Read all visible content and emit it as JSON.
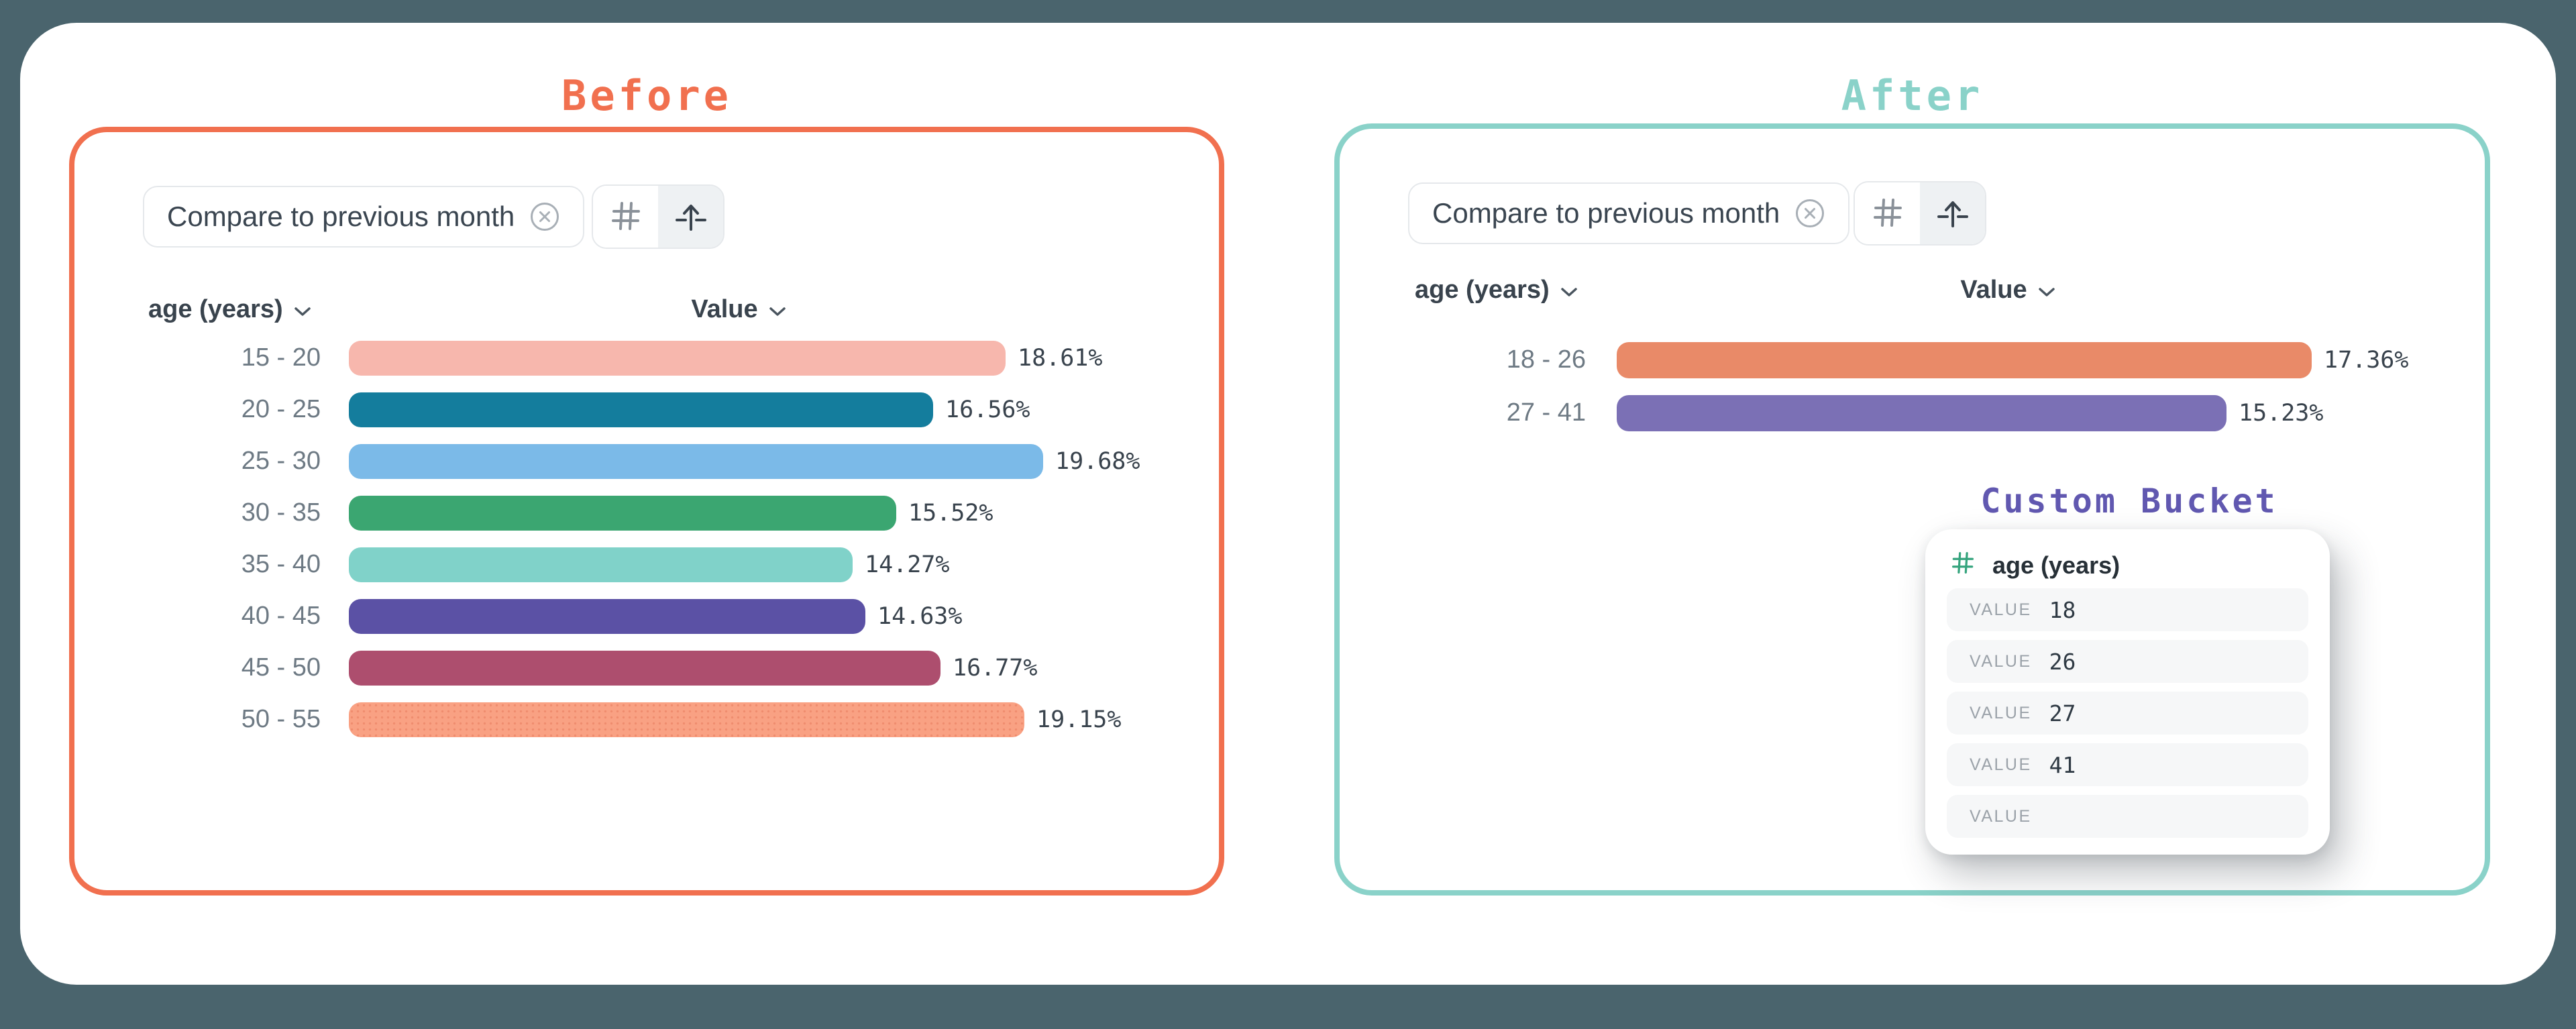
{
  "colors": {
    "page_bg": "#4A646D",
    "card_bg": "#FFFFFF",
    "before_accent": "#F1704F",
    "after_accent": "#8AD2C9",
    "custom_accent": "#6158B0",
    "hash_green": "#35A47D",
    "chip_border": "#E5E8EB",
    "chip_text": "#3A4550",
    "icon_grey": "#8A9199",
    "icon_dark": "#39434D",
    "seg_bg": "#EEF1F3",
    "label_grey": "#6E7A84",
    "value_text": "#39434D",
    "header_text": "#39434D",
    "popup_row_bg": "#F6F7F8",
    "popup_label": "#9BA2A9",
    "popup_value": "#2F3A44"
  },
  "before_panel": {
    "title": "Before",
    "chip_label": "Compare to previous month",
    "category_header": "age (years)",
    "value_header": "Value",
    "bar_scale": 52.6,
    "rows": [
      {
        "label": "15 - 20",
        "value": 18.61,
        "display": "18.61%",
        "color": "#F7B7AD"
      },
      {
        "label": "20 - 25",
        "value": 16.56,
        "display": "16.56%",
        "color": "#147D9D"
      },
      {
        "label": "25 - 30",
        "value": 19.68,
        "display": "19.68%",
        "color": "#7BBAE8"
      },
      {
        "label": "30 - 35",
        "value": 15.52,
        "display": "15.52%",
        "color": "#3BA671"
      },
      {
        "label": "35 - 40",
        "value": 14.27,
        "display": "14.27%",
        "color": "#80D2C9"
      },
      {
        "label": "40 - 45",
        "value": 14.63,
        "display": "14.63%",
        "color": "#5B51A5"
      },
      {
        "label": "45 - 50",
        "value": 16.77,
        "display": "16.77%",
        "color": "#AD4E6E"
      },
      {
        "label": "50 - 55",
        "value": 19.15,
        "display": "19.15%",
        "color": "#F9A183",
        "dot_color": "#EF8C6E"
      }
    ]
  },
  "after_panel": {
    "title": "After",
    "chip_label": "Compare to previous month",
    "category_header": "age (years)",
    "value_header": "Value",
    "bar_scale": 59.7,
    "rows": [
      {
        "label": "18 - 26",
        "value": 17.36,
        "display": "17.36%",
        "color": "#E98A68"
      },
      {
        "label": "27 - 41",
        "value": 15.23,
        "display": "15.23%",
        "color": "#7B70B5"
      }
    ]
  },
  "custom_bucket": {
    "title": "Custom Bucket",
    "field_label": "age (years)",
    "rows": [
      {
        "label": "VALUE",
        "value": "18"
      },
      {
        "label": "VALUE",
        "value": "26"
      },
      {
        "label": "VALUE",
        "value": "27"
      },
      {
        "label": "VALUE",
        "value": "41"
      },
      {
        "label": "VALUE",
        "value": ""
      }
    ]
  },
  "chart_data": [
    {
      "type": "bar",
      "orientation": "horizontal",
      "title": "Before",
      "categories": [
        "15 - 20",
        "20 - 25",
        "25 - 30",
        "30 - 35",
        "35 - 40",
        "40 - 45",
        "45 - 50",
        "50 - 55"
      ],
      "values": [
        18.61,
        16.56,
        19.68,
        15.52,
        14.27,
        14.63,
        16.77,
        19.15
      ],
      "unit": "%",
      "xlabel": "Value",
      "ylabel": "age (years)",
      "xlim": [
        0,
        20
      ],
      "grid": false,
      "data_labels": true
    },
    {
      "type": "bar",
      "orientation": "horizontal",
      "title": "After",
      "categories": [
        "18 - 26",
        "27 - 41"
      ],
      "values": [
        17.36,
        15.23
      ],
      "unit": "%",
      "xlabel": "Value",
      "ylabel": "age (years)",
      "xlim": [
        0,
        18
      ],
      "grid": false,
      "data_labels": true
    }
  ]
}
